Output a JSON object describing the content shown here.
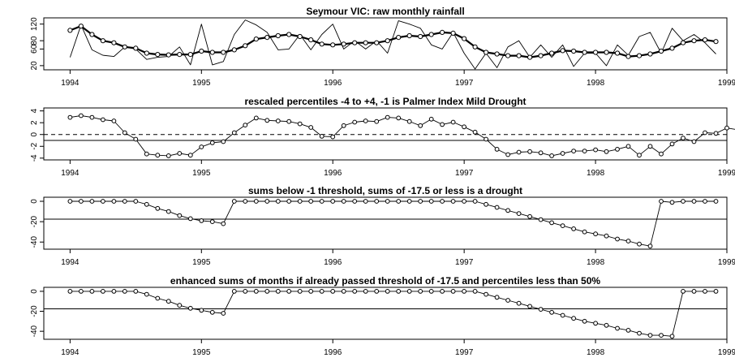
{
  "figure": {
    "panels": [
      {
        "title": "Seymour VIC: raw monthly rainfall"
      },
      {
        "title": "rescaled percentiles -4 to +4, -1 is Palmer Index Mild Drought"
      },
      {
        "title": "sums below -1 threshold, sums of -17.5 or less is a drought"
      },
      {
        "title": "enhanced sums of months if already passed threshold of -17.5 and percentiles less than 50%"
      }
    ]
  },
  "chart_data": [
    {
      "type": "line",
      "title": "Seymour VIC: raw monthly rainfall",
      "xlabel": "",
      "ylabel": "",
      "xlim": [
        1993.8,
        1999.0
      ],
      "ylim": [
        10,
        135
      ],
      "x_ticks": [
        1994,
        1995,
        1996,
        1997,
        1998,
        1999
      ],
      "x_tick_labels": [
        "1994",
        "1995",
        "1996",
        "1997",
        "1998",
        "1999"
      ],
      "y_ticks": [
        20,
        60,
        80,
        120
      ],
      "y_tick_labels": [
        "20",
        "60",
        "80",
        "120"
      ],
      "x_start": 1994.0,
      "x_step": 0.08333,
      "series": [
        {
          "style": "thin",
          "values": [
            40,
            118,
            58,
            45,
            42,
            65,
            60,
            35,
            40,
            42,
            65,
            22,
            120,
            22,
            30,
            95,
            130,
            118,
            100,
            58,
            60,
            95,
            58,
            95,
            120,
            60,
            80,
            60,
            80,
            50,
            128,
            120,
            110,
            70,
            60,
            100,
            50,
            12,
            50,
            15,
            65,
            80,
            40,
            70,
            40,
            70,
            18,
            50,
            50,
            20,
            70,
            45,
            90,
            100,
            50,
            110,
            80,
            95,
            75,
            48
          ]
        },
        {
          "style": "thick-with-points",
          "values": [
            105,
            115,
            95,
            80,
            75,
            65,
            62,
            50,
            47,
            46,
            47,
            47,
            55,
            52,
            52,
            58,
            68,
            84,
            88,
            92,
            95,
            90,
            82,
            72,
            70,
            72,
            75,
            75,
            75,
            80,
            88,
            92,
            90,
            95,
            100,
            98,
            85,
            65,
            52,
            48,
            44,
            44,
            40,
            44,
            50,
            56,
            55,
            52,
            52,
            52,
            50,
            42,
            44,
            48,
            55,
            62,
            75,
            80,
            82,
            78
          ]
        }
      ]
    },
    {
      "type": "line",
      "title": "rescaled percentiles -4 to +4, -1 is Palmer Index Mild Drought",
      "xlabel": "",
      "ylabel": "",
      "xlim": [
        1993.8,
        1999.0
      ],
      "ylim": [
        -4.3,
        4.5
      ],
      "x_ticks": [
        1994,
        1995,
        1996,
        1997,
        1998,
        1999
      ],
      "x_tick_labels": [
        "1994",
        "1995",
        "1996",
        "1997",
        "1998",
        "1999"
      ],
      "y_ticks": [
        -4,
        -2,
        0,
        2,
        4
      ],
      "y_tick_labels": [
        "-4",
        "-2",
        "0",
        "2",
        "4"
      ],
      "reference_lines": [
        {
          "y": 0,
          "style": "dashed"
        },
        {
          "y": -1,
          "style": "solid"
        }
      ],
      "x_start": 1994.0,
      "x_step": 0.08333,
      "values": [
        2.9,
        3.2,
        2.9,
        2.5,
        2.3,
        0.3,
        -0.8,
        -3.3,
        -3.5,
        -3.6,
        -3.2,
        -3.5,
        -2.1,
        -1.4,
        -1.2,
        0.3,
        1.6,
        2.8,
        2.4,
        2.3,
        2.2,
        1.8,
        1.2,
        -0.3,
        -0.4,
        1.5,
        2.1,
        2.3,
        2.2,
        2.9,
        2.8,
        2.2,
        1.5,
        2.6,
        1.7,
        2.1,
        1.3,
        0.4,
        -0.8,
        -2.5,
        -3.4,
        -3.0,
        -2.9,
        -3.1,
        -3.6,
        -3.2,
        -2.8,
        -2.8,
        -2.6,
        -2.9,
        -2.5,
        -2.0,
        -3.5,
        -2.0,
        -3.3,
        -1.6,
        -0.6,
        -1.2,
        0.3,
        0.2,
        1.1,
        0.8
      ]
    },
    {
      "type": "line",
      "title": "sums below -1 threshold, sums of -17.5 or less is a drought",
      "xlabel": "",
      "ylabel": "",
      "xlim": [
        1993.8,
        1999.0
      ],
      "ylim": [
        -47,
        4
      ],
      "x_ticks": [
        1994,
        1995,
        1996,
        1997,
        1998,
        1999
      ],
      "x_tick_labels": [
        "1994",
        "1995",
        "1996",
        "1997",
        "1998",
        "1999"
      ],
      "y_ticks": [
        -40,
        -20,
        0
      ],
      "y_tick_labels": [
        "-40",
        "-20",
        "0"
      ],
      "reference_lines": [
        {
          "y": -17.5,
          "style": "solid"
        }
      ],
      "x_start": 1994.0,
      "x_step": 0.08333,
      "values": [
        0,
        0,
        0,
        0,
        0,
        0,
        0,
        -3,
        -7,
        -10,
        -14,
        -17,
        -19,
        -20,
        -22,
        0,
        0,
        0,
        0,
        0,
        0,
        0,
        0,
        0,
        0,
        0,
        0,
        0,
        0,
        0,
        0,
        0,
        0,
        0,
        0,
        0,
        0,
        0,
        -3,
        -6,
        -9,
        -12,
        -15,
        -18,
        -21,
        -24,
        -27,
        -30,
        -32,
        -34,
        -37,
        -39,
        -42,
        -44,
        0,
        -1,
        0,
        0,
        0,
        0
      ]
    },
    {
      "type": "line",
      "title": "enhanced sums of months if already passed threshold of -17.5 and percentiles less than 50%",
      "xlabel": "",
      "ylabel": "",
      "xlim": [
        1993.8,
        1999.0
      ],
      "ylim": [
        -48,
        4
      ],
      "x_ticks": [
        1994,
        1995,
        1996,
        1997,
        1998,
        1999
      ],
      "x_tick_labels": [
        "1994",
        "1995",
        "1996",
        "1997",
        "1998",
        "1999"
      ],
      "y_ticks": [
        -40,
        -20,
        0
      ],
      "y_tick_labels": [
        "-40",
        "-20",
        "0"
      ],
      "reference_lines": [
        {
          "y": -17.5,
          "style": "solid"
        }
      ],
      "x_start": 1994.0,
      "x_step": 0.08333,
      "values": [
        0,
        0,
        0,
        0,
        0,
        0,
        0,
        -3,
        -7,
        -10,
        -14,
        -17,
        -19,
        -21,
        -22,
        0,
        0,
        0,
        0,
        0,
        0,
        0,
        0,
        0,
        0,
        0,
        0,
        0,
        0,
        0,
        0,
        0,
        0,
        0,
        0,
        0,
        0,
        0,
        -3,
        -6,
        -9,
        -12,
        -15,
        -18,
        -21,
        -24,
        -27,
        -30,
        -32,
        -34,
        -37,
        -39,
        -42,
        -44,
        -44,
        -45,
        0,
        0,
        0,
        0
      ]
    }
  ]
}
